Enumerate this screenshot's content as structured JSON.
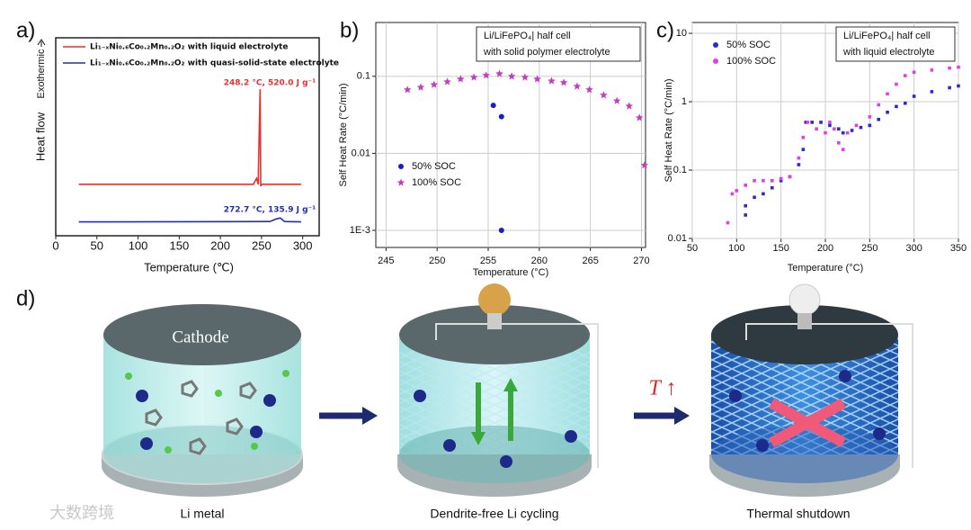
{
  "panel_labels": [
    "a)",
    "b)",
    "c)",
    "d)"
  ],
  "chart_data": [
    {
      "type": "line",
      "xlabel": "Temperature (℃)",
      "ylabel": "Heat flow",
      "ylabel_note": "Exothermic",
      "xlim": [
        0,
        320
      ],
      "xticks": [
        0,
        50,
        100,
        150,
        200,
        250,
        300
      ],
      "ylim": [
        0,
        10
      ],
      "legend": "upper left",
      "series": [
        {
          "name": "Li₁₋ₓNi₀.₆Co₀.₂Mn₀.₂O₂ with liquid electrolyte",
          "color": "#e8312f",
          "x": [
            28,
            240,
            244,
            246,
            247,
            248.2,
            249,
            250,
            298
          ],
          "values": [
            2.6,
            2.6,
            2.9,
            2.6,
            5,
            7.4,
            2.5,
            2.6,
            2.6
          ]
        },
        {
          "name": "Li₁₋ₓNi₀.₆Co₀.₂Mn₀.₂O₂ with quasi-solid-state electrolyte",
          "color": "#1f2fb0",
          "x": [
            28,
            260,
            268,
            272.7,
            278,
            298
          ],
          "values": [
            0.7,
            0.72,
            0.85,
            0.9,
            0.72,
            0.7
          ]
        }
      ],
      "annotations": [
        {
          "text": "248.2 °C, 520.0 J g⁻¹",
          "color": "#e8312f"
        },
        {
          "text": "272.7 °C, 135.9 J g⁻¹",
          "color": "#1f2fb0"
        }
      ]
    },
    {
      "type": "scatter",
      "xlabel": "Temperature (°C)",
      "ylabel": "Self Heat Rate (°C/min)",
      "ylog": true,
      "grid": true,
      "xlim": [
        244,
        270.4
      ],
      "xticks": [
        245,
        250,
        255,
        260,
        265,
        270
      ],
      "ylim": [
        0.0006,
        0.5
      ],
      "yticks": [
        {
          "value": 0.001,
          "label": "1E-3"
        },
        0.01,
        0.1
      ],
      "legend": "lower left",
      "note_lines": [
        "Li/LiFePO₄| half cell",
        "with solid polymer electrolyte"
      ],
      "series": [
        {
          "name": "50% SOC",
          "color": "#1c1cc8",
          "marker": "circle",
          "x": [
            255.5,
            256.3,
            256.3
          ],
          "values": [
            0.042,
            0.03,
            0.001
          ]
        },
        {
          "name": "100% SOC",
          "color": "#c040c0",
          "marker": "star",
          "x": [
            247.1,
            248.4,
            249.7,
            251,
            252.3,
            253.6,
            254.8,
            256.1,
            257.3,
            258.6,
            259.8,
            261.2,
            262.4,
            263.7,
            264.9,
            266.3,
            267.6,
            268.8,
            269.8,
            270.3
          ],
          "values": [
            0.067,
            0.072,
            0.078,
            0.085,
            0.092,
            0.097,
            0.103,
            0.108,
            0.1,
            0.097,
            0.092,
            0.087,
            0.083,
            0.074,
            0.067,
            0.057,
            0.048,
            0.041,
            0.029,
            0.007
          ]
        }
      ]
    },
    {
      "type": "scatter",
      "xlabel": "Temperature (°C)",
      "ylabel": "Self Heat Rate (°C/min)",
      "ylog": true,
      "grid": true,
      "xlim": [
        50,
        350
      ],
      "xticks": [
        50,
        100,
        150,
        200,
        250,
        300,
        350
      ],
      "ylim": [
        0.01,
        14.4
      ],
      "yticks": [
        0.01,
        0.1,
        1,
        10
      ],
      "legend": "upper left",
      "note_lines": [
        "Li/LiFePO₄| half cell",
        "with liquid electrolyte"
      ],
      "series": [
        {
          "name": "50% SOC",
          "color": "#2a2ad0",
          "marker": "square",
          "x": [
            110,
            110,
            120,
            130,
            140,
            150,
            160,
            170,
            175,
            178,
            185,
            195,
            205,
            215,
            220,
            230,
            240,
            250,
            260,
            270,
            280,
            290,
            300,
            320,
            340,
            350
          ],
          "values": [
            0.022,
            0.03,
            0.04,
            0.045,
            0.055,
            0.07,
            0.08,
            0.12,
            0.2,
            0.5,
            0.5,
            0.5,
            0.45,
            0.4,
            0.35,
            0.38,
            0.42,
            0.45,
            0.55,
            0.7,
            0.85,
            0.95,
            1.2,
            1.4,
            1.6,
            1.7
          ]
        },
        {
          "name": "100% SOC",
          "color": "#e040e0",
          "marker": "square",
          "x": [
            90,
            95,
            100,
            110,
            120,
            130,
            140,
            150,
            160,
            170,
            175,
            180,
            190,
            200,
            205,
            210,
            215,
            220,
            225,
            235,
            250,
            260,
            270,
            280,
            290,
            300,
            320,
            340,
            350
          ],
          "values": [
            0.017,
            0.045,
            0.05,
            0.06,
            0.07,
            0.07,
            0.07,
            0.075,
            0.08,
            0.15,
            0.3,
            0.5,
            0.4,
            0.35,
            0.5,
            0.4,
            0.25,
            0.2,
            0.35,
            0.45,
            0.6,
            0.9,
            1.3,
            1.8,
            2.4,
            2.7,
            2.9,
            3.1,
            3.2
          ]
        }
      ]
    }
  ],
  "diagram": {
    "cathode": "Cathode",
    "temperature": "T ↑",
    "captions": [
      "Li metal",
      "Dendrite-free Li cycling",
      "Thermal shutdown"
    ]
  },
  "watermark": "大数跨境"
}
